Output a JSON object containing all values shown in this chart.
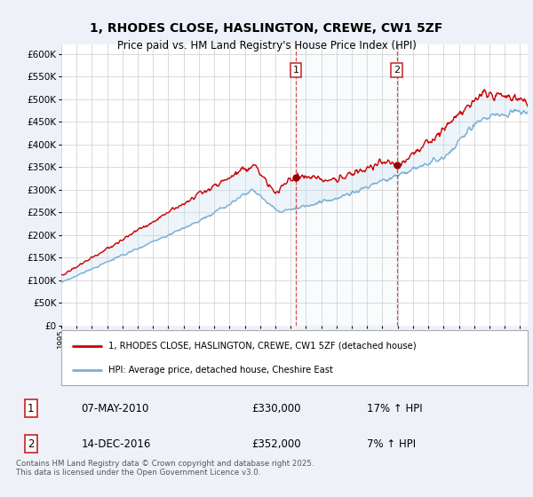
{
  "title": "1, RHODES CLOSE, HASLINGTON, CREWE, CW1 5ZF",
  "subtitle": "Price paid vs. HM Land Registry's House Price Index (HPI)",
  "legend_line1": "1, RHODES CLOSE, HASLINGTON, CREWE, CW1 5ZF (detached house)",
  "legend_line2": "HPI: Average price, detached house, Cheshire East",
  "transaction1_label": "1",
  "transaction1_date": "07-MAY-2010",
  "transaction1_price": "£330,000",
  "transaction1_hpi": "17% ↑ HPI",
  "transaction2_label": "2",
  "transaction2_date": "14-DEC-2016",
  "transaction2_price": "£352,000",
  "transaction2_hpi": "7% ↑ HPI",
  "footer": "Contains HM Land Registry data © Crown copyright and database right 2025.\nThis data is licensed under the Open Government Licence v3.0.",
  "ylim": [
    0,
    620000
  ],
  "yticks": [
    0,
    50000,
    100000,
    150000,
    200000,
    250000,
    300000,
    350000,
    400000,
    450000,
    500000,
    550000,
    600000
  ],
  "background_color": "#eef2f8",
  "plot_bg_color": "#ffffff",
  "red_line_color": "#cc0000",
  "blue_line_color": "#7aafd4",
  "fill_color": "#c8dff0",
  "grid_color": "#cccccc",
  "vline_color": "#cc3333",
  "transaction1_x": 2010.35,
  "transaction2_x": 2016.95,
  "dot_color": "#990000"
}
